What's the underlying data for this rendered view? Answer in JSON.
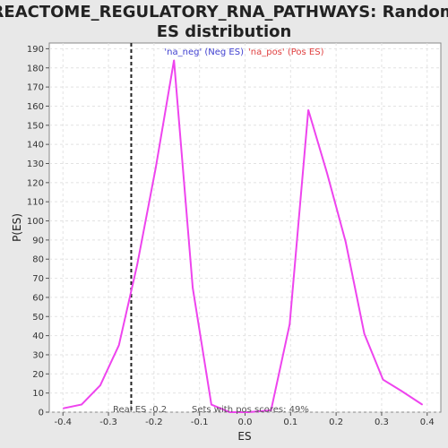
{
  "chart_data": {
    "type": "line",
    "title_line1": "REACTOME_REGULATORY_RNA_PATHWAYS: Random",
    "title_line2": "ES distribution",
    "xlabel": "ES",
    "ylabel": "P(ES)",
    "xlim": [
      -0.43,
      0.43
    ],
    "ylim": [
      0,
      193
    ],
    "x_ticks": [
      -0.4,
      -0.3,
      -0.2,
      -0.1,
      0.0,
      0.1,
      0.2,
      0.3,
      0.4
    ],
    "x_tick_labels": [
      "-0.4",
      "-0.3",
      "-0.2",
      "-0.1",
      "0.0",
      "0.1",
      "0.2",
      "0.3",
      "0.4"
    ],
    "y_ticks": [
      0,
      10,
      20,
      30,
      40,
      50,
      60,
      70,
      80,
      90,
      100,
      110,
      120,
      130,
      140,
      150,
      160,
      170,
      180,
      190
    ],
    "grid": true,
    "legend": {
      "placement": "top-center",
      "entries": [
        {
          "label": "'na_neg' (Neg ES)",
          "color": "#4040d0"
        },
        {
          "label": "'na_pos' (Pos ES)",
          "color": "#e04040"
        }
      ]
    },
    "series": [
      {
        "color": "#ee44ee",
        "x": [
          -0.399,
          -0.359,
          -0.318,
          -0.277,
          -0.237,
          -0.196,
          -0.156,
          -0.115,
          -0.074,
          -0.034,
          0.007,
          0.057,
          0.098,
          0.139,
          0.18,
          0.221,
          0.262,
          0.303,
          0.344,
          0.389
        ],
        "y": [
          2,
          4,
          14,
          35,
          77,
          128,
          184,
          65,
          4,
          0,
          0,
          1,
          46,
          158,
          125,
          89,
          41,
          17,
          11,
          4
        ]
      }
    ],
    "real_es": {
      "value": -0.25,
      "label": "Real ES -0.2"
    },
    "annotation": "Sets with pos scores: 49%"
  }
}
